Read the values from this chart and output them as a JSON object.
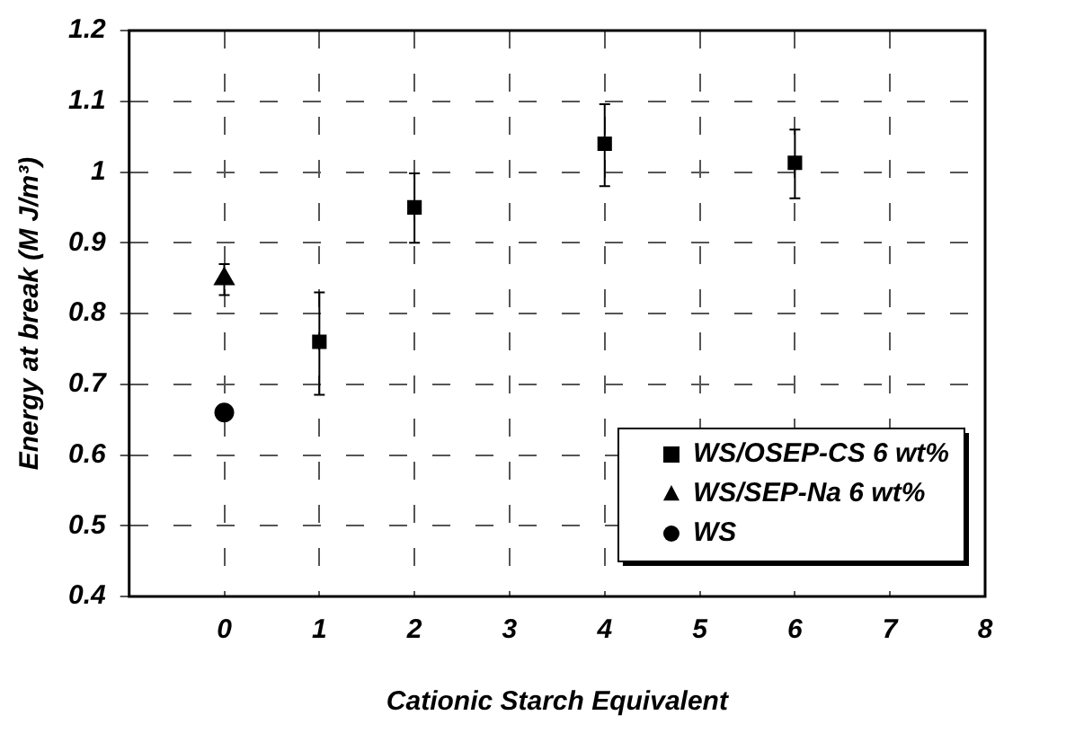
{
  "chart_data": {
    "type": "scatter",
    "xlabel": "Cationic Starch Equivalent",
    "ylabel": "Energy at break (M J/m³)",
    "xlim": [
      -1,
      8
    ],
    "xticks": [
      0,
      1,
      2,
      3,
      4,
      5,
      6,
      7,
      8
    ],
    "ylim": [
      0.4,
      1.2
    ],
    "yticks": [
      0.4,
      0.5,
      0.6,
      0.7,
      0.8,
      0.9,
      1,
      1.1,
      1.2
    ],
    "grid": true,
    "legend": "bottom right",
    "series": [
      {
        "name": "WS/OSEP-CS 6 wt%",
        "color": "#000000",
        "marker": "square",
        "x": [
          1,
          2,
          4,
          6
        ],
        "values": [
          0.76,
          0.95,
          1.04,
          1.013
        ],
        "errors": [
          [
            0.685,
            0.83
          ],
          [
            0.9,
            0.998
          ],
          [
            0.98,
            1.096
          ],
          [
            0.963,
            1.06
          ]
        ]
      },
      {
        "name": "WS/SEP-Na 6 wt%",
        "color": "#000000",
        "marker": "triangle",
        "x": [
          0
        ],
        "values": [
          0.849
        ],
        "errors": [
          [
            0.826,
            0.87
          ]
        ]
      },
      {
        "name": "WS",
        "color": "#000000",
        "marker": "circle",
        "x": [
          0
        ],
        "values": [
          0.66
        ]
      }
    ]
  }
}
